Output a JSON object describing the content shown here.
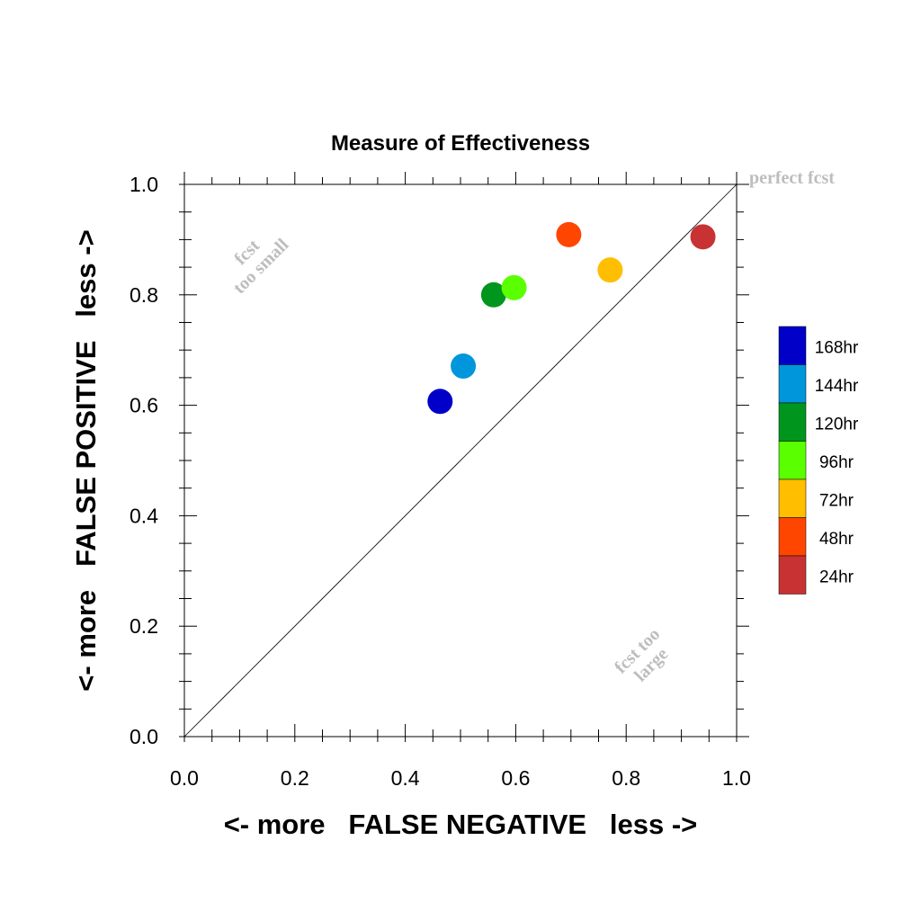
{
  "chart_data": {
    "type": "scatter",
    "title": "Measure of Effectiveness",
    "xlabel": "<- more   FALSE NEGATIVE   less ->",
    "ylabel": "<- more   FALSE POSITIVE   less ->",
    "xlim": [
      0.0,
      1.0
    ],
    "ylim": [
      0.0,
      1.0
    ],
    "x_ticks": [
      "0.0",
      "0.2",
      "0.4",
      "0.6",
      "0.8",
      "1.0"
    ],
    "y_ticks": [
      "0.0",
      "0.2",
      "0.4",
      "0.6",
      "0.8",
      "1.0"
    ],
    "grid": false,
    "legend_placement": "right",
    "annotations": {
      "diagonal": "perfect fcst",
      "upper_left_line1": "fcst",
      "upper_left_line2": "too small",
      "lower_right_line1": "fcst too",
      "lower_right_line2": "large"
    },
    "series": [
      {
        "name": "168hr",
        "color": "#0000c8",
        "x": 0.463,
        "y": 0.607
      },
      {
        "name": "144hr",
        "color": "#0096dc",
        "x": 0.505,
        "y": 0.671
      },
      {
        "name": "120hr",
        "color": "#00961e",
        "x": 0.56,
        "y": 0.8
      },
      {
        "name": "96hr",
        "color": "#5aff00",
        "x": 0.597,
        "y": 0.813
      },
      {
        "name": "72hr",
        "color": "#ffbe00",
        "x": 0.771,
        "y": 0.845
      },
      {
        "name": "48hr",
        "color": "#ff4600",
        "x": 0.696,
        "y": 0.909
      },
      {
        "name": "24hr",
        "color": "#c83232",
        "x": 0.939,
        "y": 0.905
      }
    ]
  }
}
